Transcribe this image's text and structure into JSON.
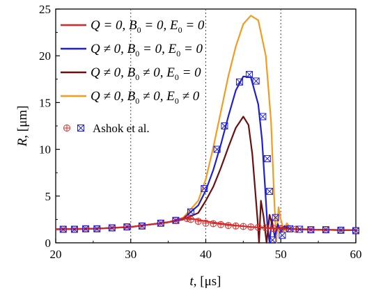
{
  "chart_data": {
    "type": "line",
    "xlabel": "t, [μs]",
    "ylabel": "R, [μm]",
    "xlim": [
      20,
      60
    ],
    "ylim": [
      0,
      25
    ],
    "xticks": [
      20,
      30,
      40,
      50,
      60
    ],
    "yticks": [
      0,
      5,
      10,
      15,
      20,
      25
    ],
    "grid": "dotted at x=30,40,50",
    "legend_placement": "top-left",
    "series": [
      {
        "name": "Q = 0, B0 = 0, E0 = 0",
        "color": "#d62828",
        "x": [
          20,
          25,
          30,
          35,
          37,
          38,
          40,
          42,
          44,
          46,
          48,
          50,
          55,
          60
        ],
        "y": [
          1.45,
          1.5,
          1.7,
          2.2,
          2.55,
          2.6,
          2.3,
          2.05,
          1.85,
          1.7,
          1.6,
          1.5,
          1.4,
          1.35
        ]
      },
      {
        "name": "Q ≠ 0, B0 = 0, E0 = 0",
        "color": "#1f1fd6",
        "x": [
          20,
          25,
          30,
          35,
          37,
          39,
          40,
          41,
          42,
          43,
          44,
          45,
          46,
          47,
          47.5,
          47.9,
          48.2,
          48.5,
          48.8,
          49.2,
          49.6,
          50,
          50.5,
          51,
          52,
          55,
          60
        ],
        "y": [
          1.45,
          1.5,
          1.7,
          2.2,
          2.6,
          4.0,
          5.6,
          7.8,
          10.5,
          13.5,
          16.3,
          17.8,
          17.7,
          14.8,
          11.0,
          6.0,
          2.0,
          0.0,
          2.5,
          0.6,
          2.0,
          1.2,
          1.8,
          1.5,
          1.45,
          1.4,
          1.35
        ]
      },
      {
        "name": "Q ≠ 0, B0 ≠ 0, E0 = 0",
        "color": "#6b0f0f",
        "x": [
          20,
          25,
          30,
          35,
          37,
          39,
          40,
          41,
          42,
          43,
          44,
          45,
          45.7,
          46.2,
          46.6,
          46.9,
          47.1,
          47.35,
          47.7,
          48.1,
          48.5,
          49,
          50,
          52,
          55,
          60
        ],
        "y": [
          1.45,
          1.5,
          1.7,
          2.2,
          2.5,
          3.2,
          4.5,
          6.0,
          8.0,
          10.2,
          12.3,
          13.5,
          12.6,
          9.5,
          5.5,
          2.5,
          0.0,
          4.5,
          2.8,
          0.0,
          3.0,
          1.5,
          1.6,
          1.45,
          1.4,
          1.35
        ]
      },
      {
        "name": "Q ≠ 0, B0 ≠ 0, E0 ≠ 0",
        "color": "#f39c1f",
        "x": [
          20,
          25,
          30,
          35,
          37,
          39,
          40,
          41,
          42,
          43,
          44,
          45,
          46,
          47,
          48,
          48.7,
          49.1,
          49.4,
          49.7,
          50,
          50.4,
          50.8,
          51.3,
          52,
          55,
          60
        ],
        "y": [
          1.45,
          1.5,
          1.7,
          2.2,
          2.7,
          4.5,
          6.8,
          10.2,
          14.0,
          17.8,
          21.0,
          23.4,
          24.3,
          23.8,
          20.0,
          13.0,
          5.0,
          0.0,
          3.8,
          2.5,
          1.3,
          2.1,
          1.5,
          1.5,
          1.4,
          1.35
        ]
      }
    ],
    "markers": [
      {
        "name": "Ashok et al.",
        "symbol": "circled-plus",
        "color": "#d62828",
        "x": [
          21,
          22.5,
          24,
          25.5,
          27.5,
          29.5,
          31.5,
          34,
          36,
          37.5,
          38,
          39,
          40,
          41,
          42,
          43,
          44,
          45,
          46,
          47,
          48,
          49,
          50,
          51,
          52,
          54,
          56,
          58,
          60
        ],
        "y": [
          1.45,
          1.45,
          1.5,
          1.5,
          1.6,
          1.7,
          1.8,
          2.1,
          2.4,
          2.6,
          2.5,
          2.3,
          2.1,
          2.05,
          1.95,
          1.85,
          1.8,
          1.75,
          1.7,
          1.65,
          1.6,
          1.55,
          1.5,
          1.5,
          1.45,
          1.4,
          1.4,
          1.35,
          1.3
        ]
      },
      {
        "name": "",
        "symbol": "boxed-x",
        "color": "#1f1fd6",
        "x": [
          21,
          22.5,
          24,
          25.5,
          27.5,
          29.5,
          31.5,
          34,
          36,
          38,
          39.8,
          41.5,
          42.5,
          44.5,
          45.8,
          46.7,
          47.6,
          48.2,
          48.5,
          48.9,
          49.3,
          50.2,
          51.2,
          52.5,
          54,
          56,
          58,
          60
        ],
        "y": [
          1.45,
          1.45,
          1.5,
          1.5,
          1.6,
          1.7,
          1.8,
          2.1,
          2.4,
          3.3,
          5.8,
          10.0,
          12.5,
          17.2,
          18.0,
          17.3,
          13.5,
          9.0,
          5.5,
          0.3,
          2.7,
          0.8,
          1.5,
          1.45,
          1.4,
          1.4,
          1.35,
          1.3
        ]
      }
    ]
  },
  "legend": {
    "entries": [
      {
        "Q": "Q = 0",
        "B": "B",
        "B_sub": "0",
        "B_rel": " = 0",
        "E": "E",
        "E_sub": "0",
        "E_rel": " = 0"
      },
      {
        "Q": "Q ≠ 0",
        "B": "B",
        "B_sub": "0",
        "B_rel": " = 0",
        "E": "E",
        "E_sub": "0",
        "E_rel": " = 0"
      },
      {
        "Q": "Q ≠ 0",
        "B": "B",
        "B_sub": "0",
        "B_rel": " ≠ 0",
        "E": "E",
        "E_sub": "0",
        "E_rel": " = 0"
      },
      {
        "Q": "Q ≠ 0",
        "B": "B",
        "B_sub": "0",
        "B_rel": " ≠ 0",
        "E": "E",
        "E_sub": "0",
        "E_rel": " ≠ 0"
      }
    ],
    "marker_label": "Ashok et al."
  },
  "axes": {
    "x_label_var": "t",
    "x_label_unit": ", [μs]",
    "y_label_var": "R",
    "y_label_unit": ", [μm]"
  }
}
